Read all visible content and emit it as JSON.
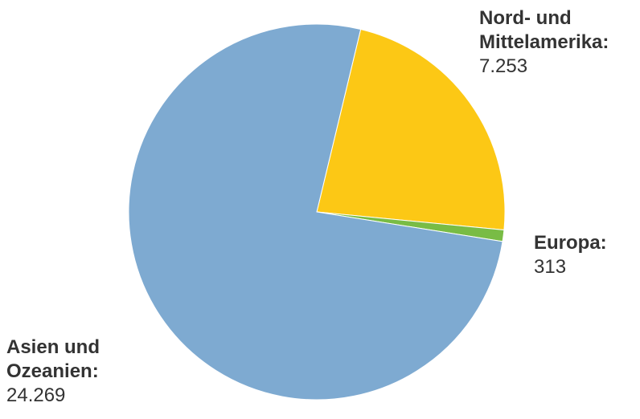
{
  "chart_data": {
    "type": "pie",
    "title": "",
    "slices": [
      {
        "label": "Nord- und Mittelamerika:",
        "label_lines": [
          "Nord- und",
          "Mittelamerika:"
        ],
        "value": 7253,
        "value_label": "7.253",
        "color": "#fcc815"
      },
      {
        "label": "Europa:",
        "label_lines": [
          "Europa:"
        ],
        "value": 313,
        "value_label": "313",
        "color": "#79bc45"
      },
      {
        "label": "Asien und Ozeanien:",
        "label_lines": [
          "Asien und",
          "Ozeanien:"
        ],
        "value": 24269,
        "value_label": "24.269",
        "color": "#7eaad1"
      }
    ],
    "legend": "none"
  }
}
